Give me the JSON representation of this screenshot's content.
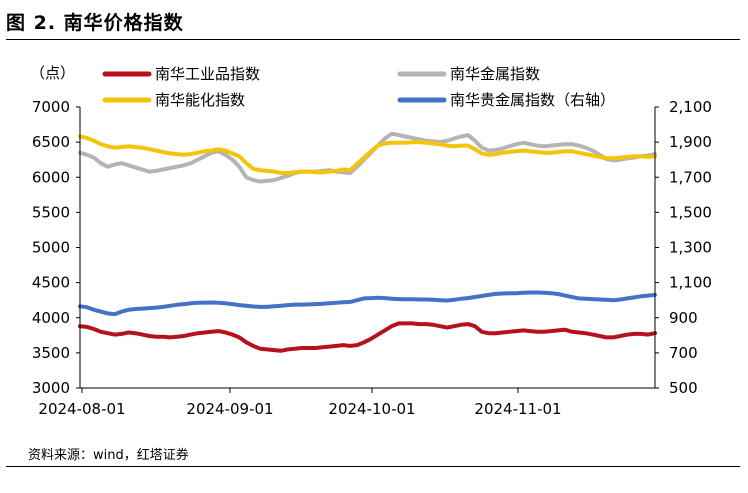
{
  "header": {
    "title": "图 2. 南华价格指数"
  },
  "footer": {
    "source": "资料来源：wind，红塔证券"
  },
  "chart_data": {
    "type": "line",
    "title": "南华价格指数",
    "unit_label": "（点）",
    "x_ticks": [
      "2024-08-01",
      "2024-09-01",
      "2024-10-01",
      "2024-11-01"
    ],
    "y_left": {
      "min": 3000,
      "max": 7000,
      "ticks": [
        "3000",
        "3500",
        "4000",
        "4500",
        "5000",
        "5500",
        "6000",
        "6500",
        "7000"
      ]
    },
    "y_right": {
      "min": 500,
      "max": 2100,
      "ticks": [
        "500",
        "700",
        "900",
        "1,100",
        "1,300",
        "1,500",
        "1,700",
        "1,900",
        "2,100"
      ]
    },
    "n_points": 84,
    "series": [
      {
        "name": "南华工业品指数",
        "axis": "left",
        "color": "#b5121b",
        "values": [
          3880,
          3870,
          3840,
          3800,
          3780,
          3760,
          3770,
          3790,
          3780,
          3760,
          3740,
          3730,
          3730,
          3720,
          3730,
          3740,
          3760,
          3780,
          3790,
          3800,
          3810,
          3790,
          3760,
          3720,
          3650,
          3600,
          3560,
          3550,
          3540,
          3530,
          3550,
          3560,
          3570,
          3570,
          3570,
          3580,
          3590,
          3600,
          3610,
          3600,
          3610,
          3650,
          3700,
          3760,
          3820,
          3880,
          3920,
          3920,
          3920,
          3910,
          3910,
          3900,
          3880,
          3860,
          3880,
          3900,
          3910,
          3880,
          3800,
          3780,
          3780,
          3790,
          3800,
          3810,
          3820,
          3810,
          3800,
          3800,
          3810,
          3820,
          3830,
          3800,
          3790,
          3780,
          3760,
          3740,
          3720,
          3720,
          3740,
          3760,
          3770,
          3770,
          3760,
          3780
        ]
      },
      {
        "name": "南华金属指数",
        "axis": "left",
        "color": "#b4b4b4",
        "values": [
          6350,
          6320,
          6280,
          6200,
          6150,
          6180,
          6200,
          6170,
          6140,
          6110,
          6080,
          6090,
          6110,
          6130,
          6150,
          6170,
          6200,
          6250,
          6300,
          6350,
          6370,
          6320,
          6250,
          6150,
          6000,
          5960,
          5940,
          5950,
          5960,
          5990,
          6020,
          6060,
          6080,
          6080,
          6080,
          6090,
          6100,
          6080,
          6070,
          6060,
          6150,
          6250,
          6350,
          6450,
          6550,
          6620,
          6600,
          6580,
          6560,
          6540,
          6520,
          6510,
          6500,
          6520,
          6550,
          6580,
          6600,
          6520,
          6420,
          6380,
          6390,
          6410,
          6440,
          6470,
          6490,
          6470,
          6450,
          6440,
          6450,
          6460,
          6470,
          6470,
          6450,
          6420,
          6380,
          6320,
          6260,
          6240,
          6250,
          6270,
          6280,
          6300,
          6310,
          6330
        ]
      },
      {
        "name": "南华能化指数",
        "axis": "left",
        "color": "#f2c40c",
        "values": [
          6580,
          6560,
          6520,
          6470,
          6440,
          6420,
          6430,
          6440,
          6430,
          6420,
          6400,
          6380,
          6360,
          6340,
          6330,
          6320,
          6330,
          6350,
          6370,
          6380,
          6400,
          6380,
          6340,
          6300,
          6200,
          6120,
          6100,
          6090,
          6080,
          6060,
          6060,
          6070,
          6080,
          6080,
          6070,
          6070,
          6080,
          6090,
          6110,
          6100,
          6190,
          6280,
          6370,
          6450,
          6480,
          6490,
          6490,
          6490,
          6500,
          6500,
          6490,
          6480,
          6470,
          6450,
          6440,
          6450,
          6450,
          6400,
          6340,
          6320,
          6330,
          6350,
          6360,
          6370,
          6380,
          6370,
          6360,
          6350,
          6350,
          6360,
          6370,
          6370,
          6350,
          6330,
          6310,
          6290,
          6270,
          6270,
          6280,
          6290,
          6300,
          6300,
          6290,
          6300
        ]
      },
      {
        "name": "南华贵金属指数（右轴）",
        "axis": "right",
        "color": "#4472c4",
        "values": [
          965,
          960,
          945,
          935,
          925,
          920,
          935,
          945,
          950,
          952,
          955,
          958,
          962,
          968,
          974,
          978,
          982,
          985,
          986,
          987,
          985,
          982,
          978,
          972,
          968,
          964,
          962,
          962,
          965,
          968,
          972,
          975,
          975,
          976,
          978,
          980,
          982,
          985,
          988,
          990,
          1000,
          1010,
          1012,
          1014,
          1012,
          1008,
          1006,
          1005,
          1005,
          1004,
          1004,
          1002,
          1000,
          998,
          1002,
          1008,
          1012,
          1018,
          1024,
          1030,
          1036,
          1038,
          1040,
          1040,
          1042,
          1044,
          1044,
          1042,
          1040,
          1035,
          1026,
          1018,
          1010,
          1008,
          1006,
          1004,
          1002,
          1000,
          1004,
          1010,
          1016,
          1022,
          1026,
          1030
        ]
      }
    ]
  }
}
